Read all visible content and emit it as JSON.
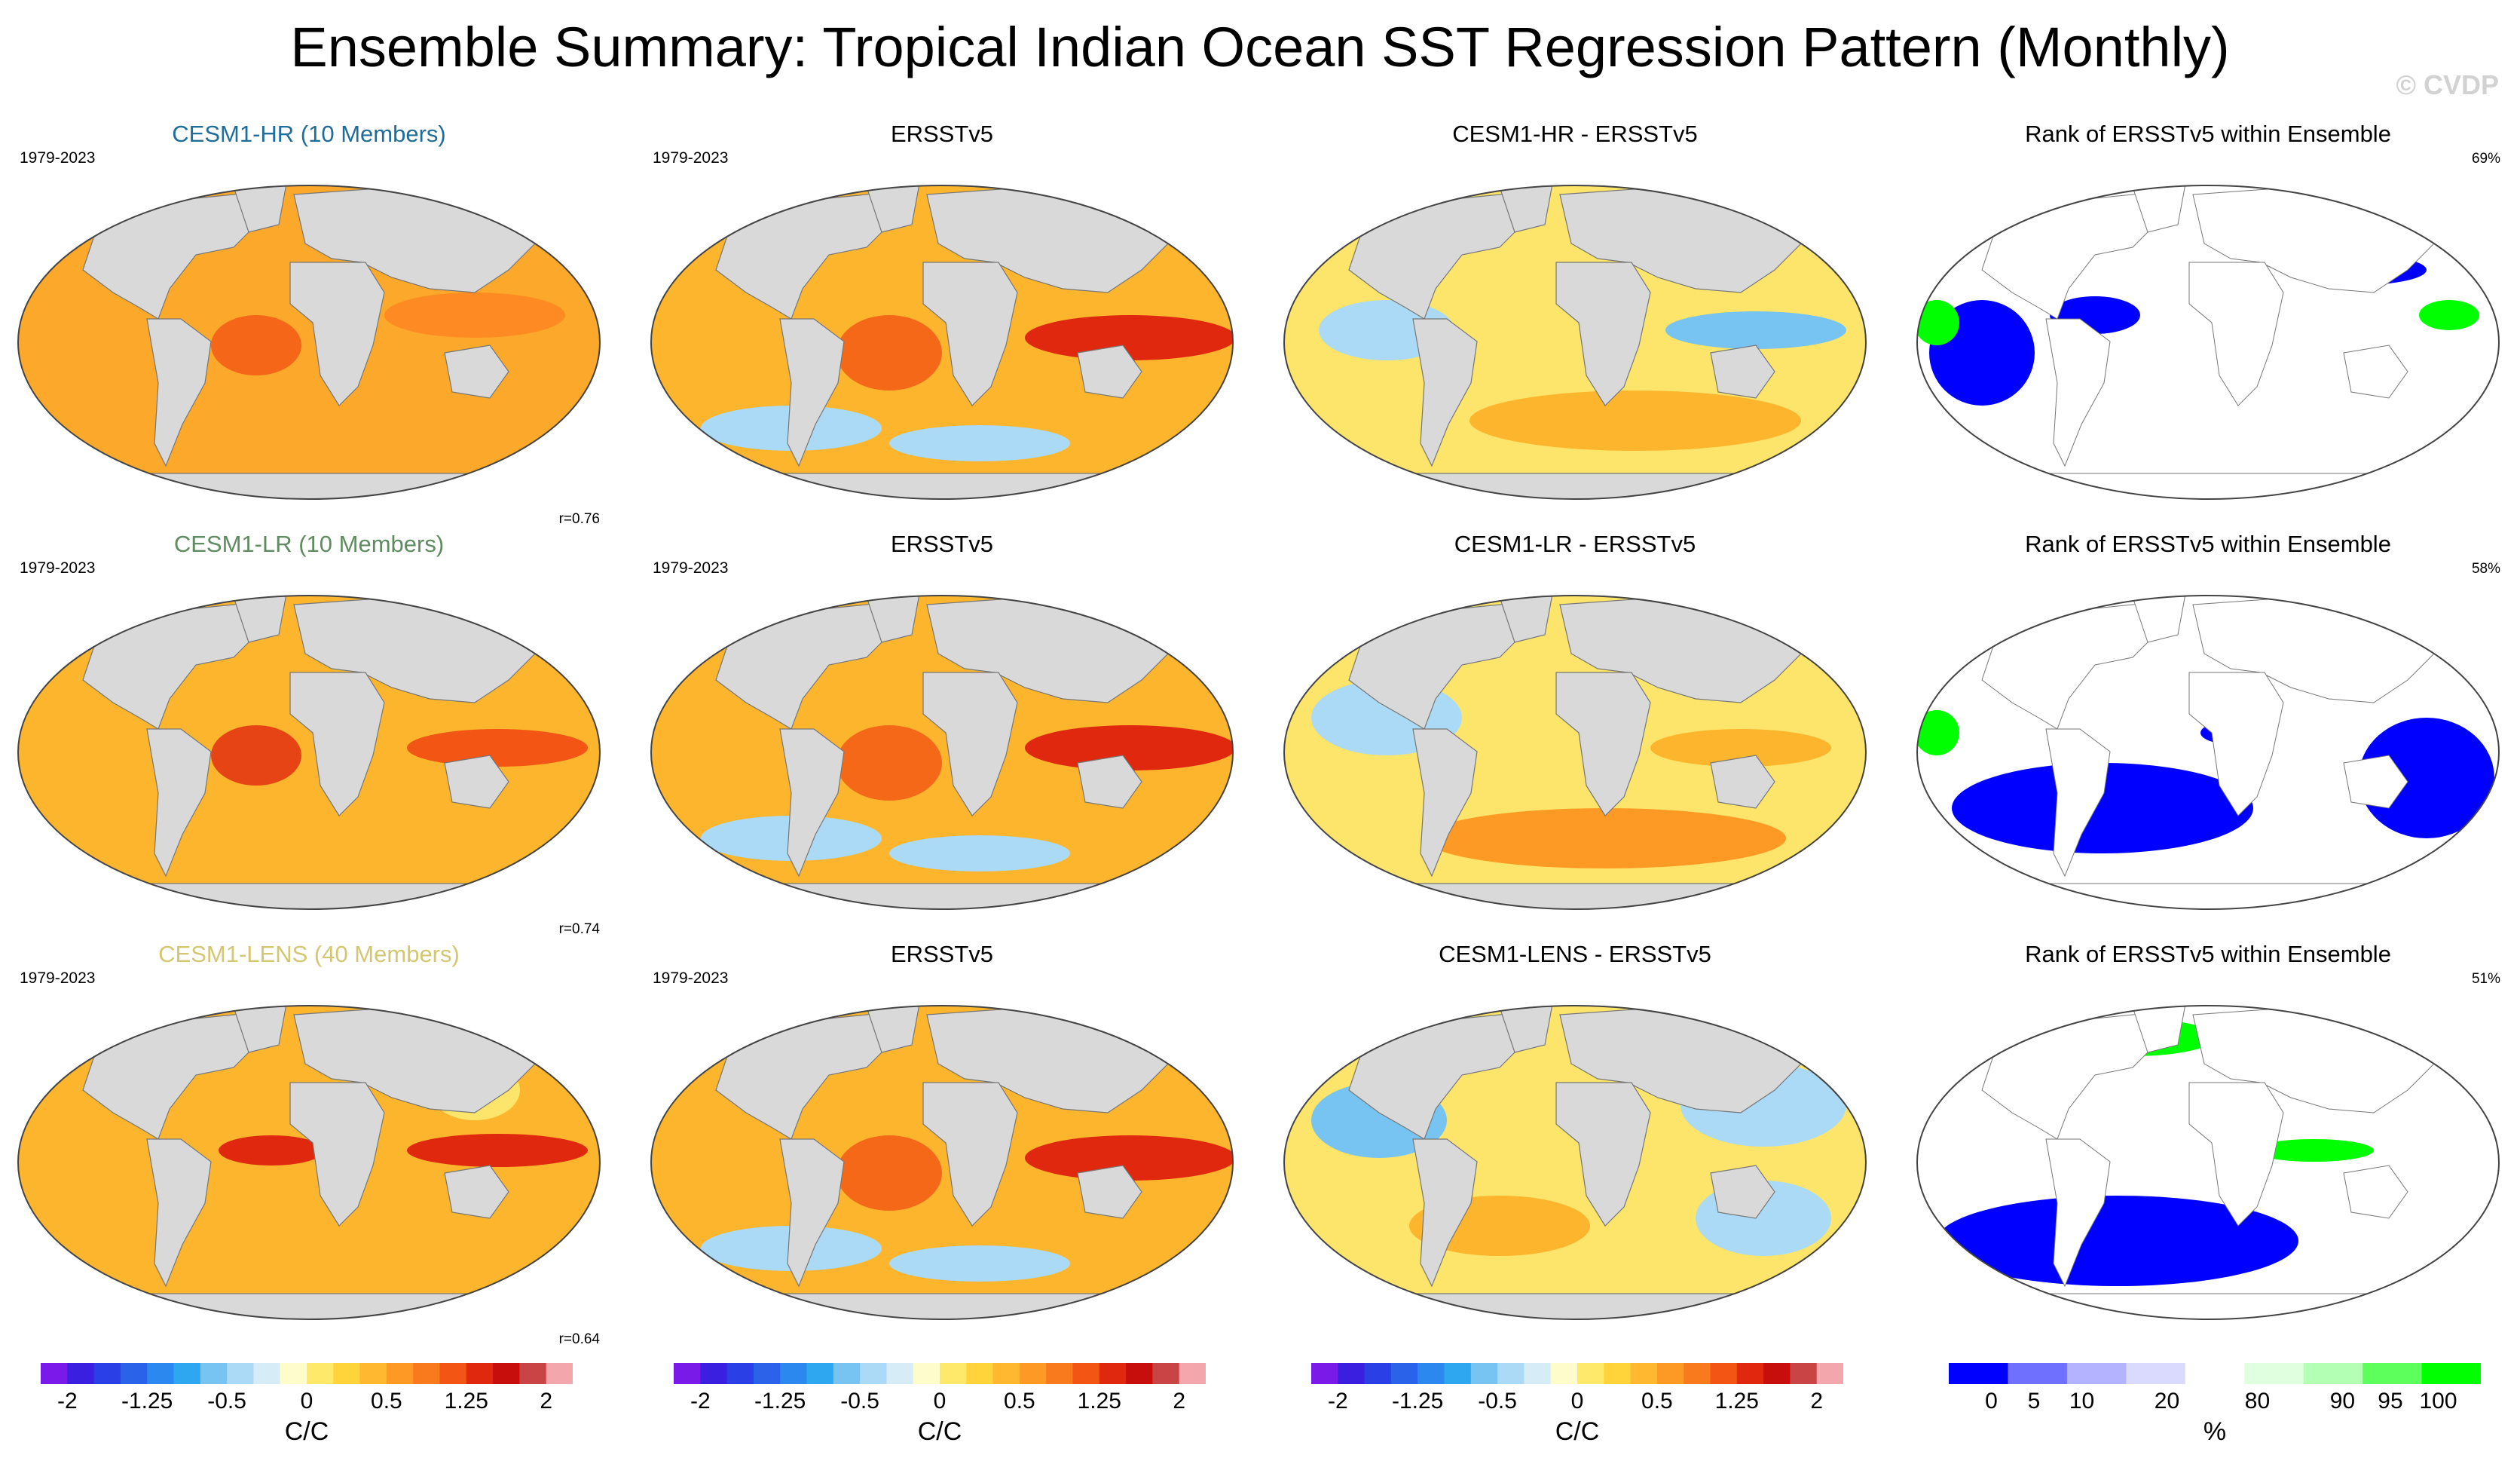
{
  "title": "Ensemble Summary: Tropical Indian Ocean SST Regression Pattern (Monthly)",
  "watermark": "© CVDP",
  "colors": {
    "land": "#d9d9d9",
    "ocean_warm": "#f9a51d",
    "hr_title": "#1f6d9a",
    "lr_title": "#5f8b60",
    "lens_title": "#d3c774"
  },
  "rows": [
    {
      "model": {
        "title": "CESM1-HR (10 Members)",
        "period": "1979-2023",
        "corr": "r=0.76"
      },
      "obs": {
        "title": "ERSSTv5",
        "period": "1979-2023"
      },
      "diff": {
        "title": "CESM1-HR - ERSSTv5"
      },
      "rank": {
        "title": "Rank of ERSSTv5 within Ensemble",
        "pct": "69%"
      }
    },
    {
      "model": {
        "title": "CESM1-LR (10 Members)",
        "period": "1979-2023",
        "corr": "r=0.74"
      },
      "obs": {
        "title": "ERSSTv5",
        "period": "1979-2023"
      },
      "diff": {
        "title": "CESM1-LR - ERSSTv5"
      },
      "rank": {
        "title": "Rank of ERSSTv5 within Ensemble",
        "pct": "58%"
      }
    },
    {
      "model": {
        "title": "CESM1-LENS (40 Members)",
        "period": "1979-2023",
        "corr": "r=0.64"
      },
      "obs": {
        "title": "ERSSTv5",
        "period": "1979-2023"
      },
      "diff": {
        "title": "CESM1-LENS - ERSSTv5"
      },
      "rank": {
        "title": "Rank of ERSSTv5 within Ensemble",
        "pct": "51%"
      }
    }
  ],
  "colorbars": {
    "sst": {
      "unit": "C/C",
      "ticks": [
        "-2",
        "-1.25",
        "-0.5",
        "0",
        "0.5",
        "1.25",
        "2"
      ],
      "colors": [
        "#7a1ae8",
        "#3a1fe0",
        "#2b3fe6",
        "#2a63ea",
        "#2a88ef",
        "#2fa7f0",
        "#77c3f2",
        "#aadaf5",
        "#d6ecf6",
        "#fffccc",
        "#ffe96a",
        "#ffd33a",
        "#ffb830",
        "#fd9a25",
        "#f97a1c",
        "#f25514",
        "#e0280f",
        "#c80d0d",
        "#c94545",
        "#f4a6ad"
      ]
    },
    "rank": {
      "unit": "%",
      "ticks": [
        "0",
        "5",
        "10",
        "20",
        "80",
        "90",
        "95",
        "100"
      ],
      "colors": [
        "#0000ff",
        "#7070ff",
        "#b3b3ff",
        "#dadaff",
        "#ffffff",
        "#dfffdf",
        "#b3ffb3",
        "#5cff5c",
        "#00ff00"
      ]
    }
  },
  "chart_data": {
    "type": "heatmap",
    "projection": "global map (Robinson-like)",
    "period": "1979-2023",
    "field": "SST regression on Tropical Indian Ocean SST index",
    "units": "C/C",
    "color_range": [
      -2,
      2
    ],
    "rank_units": "%",
    "pattern_correlations": [
      {
        "model": "CESM1-HR",
        "r": 0.76,
        "rank_pct": 69
      },
      {
        "model": "CESM1-LR",
        "r": 0.74,
        "rank_pct": 58
      },
      {
        "model": "CESM1-LENS",
        "r": 0.64,
        "rank_pct": 51
      }
    ]
  }
}
